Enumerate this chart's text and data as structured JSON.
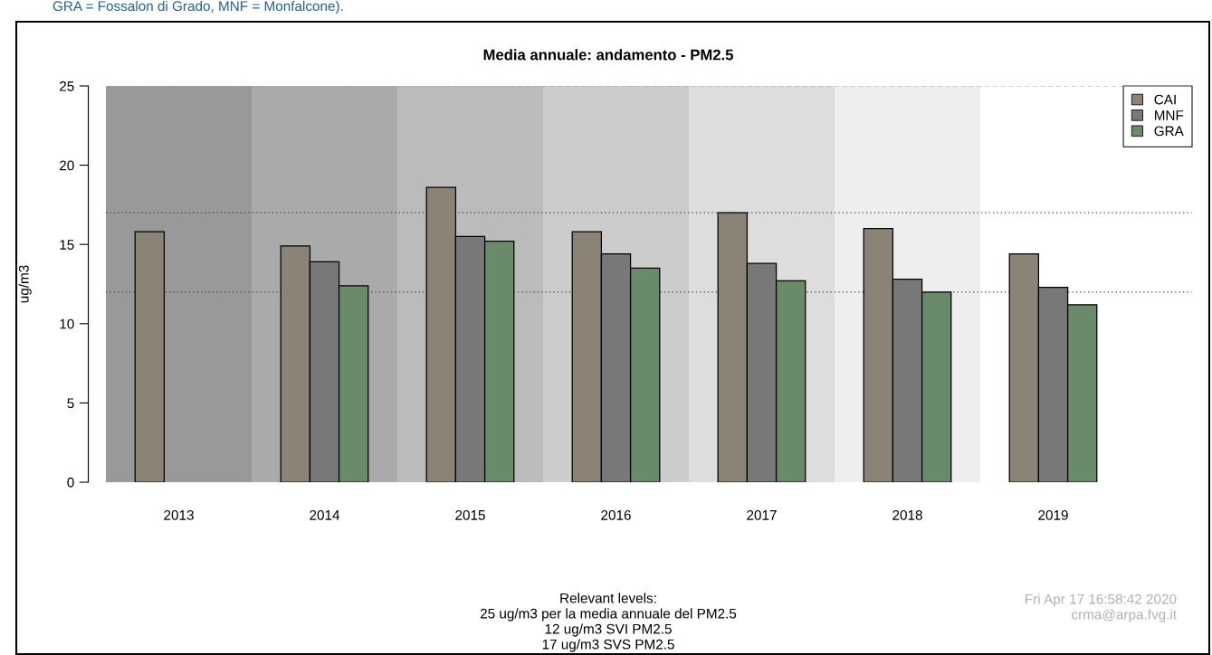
{
  "chart_data": {
    "type": "bar",
    "title": "Media annuale: andamento - PM2.5",
    "ylabel": "ug/m3",
    "categories": [
      "2013",
      "2014",
      "2015",
      "2016",
      "2017",
      "2018",
      "2019"
    ],
    "series": [
      {
        "name": "CAI",
        "color": "#8b8376",
        "values": [
          15.8,
          14.9,
          18.6,
          15.8,
          17.0,
          16.0,
          14.4
        ]
      },
      {
        "name": "MNF",
        "color": "#787878",
        "values": [
          null,
          13.9,
          15.5,
          14.4,
          13.8,
          12.8,
          12.3
        ]
      },
      {
        "name": "GRA",
        "color": "#698b69",
        "values": [
          null,
          12.4,
          15.2,
          13.5,
          12.7,
          12.0,
          11.2
        ]
      }
    ],
    "ylim": [
      0,
      25
    ],
    "yticks": [
      0,
      5,
      10,
      15,
      20,
      25
    ],
    "ref_lines": [
      {
        "axis": "y",
        "value": 25,
        "color": "#a0a0a0",
        "line_style": "dashed"
      },
      {
        "axis": "y",
        "value": 17,
        "color": "#404040",
        "line_style": "dotted"
      },
      {
        "axis": "y",
        "value": 12,
        "color": "#404040",
        "line_style": "dotted"
      }
    ],
    "bands": [
      {
        "axis": "x",
        "from": "2013",
        "to": "2013",
        "color": "#999999"
      },
      {
        "axis": "x",
        "from": "2014",
        "to": "2014",
        "color": "#aaaaaa"
      },
      {
        "axis": "x",
        "from": "2015",
        "to": "2015",
        "color": "#bbbbbb"
      },
      {
        "axis": "x",
        "from": "2016",
        "to": "2016",
        "color": "#cccccc"
      },
      {
        "axis": "x",
        "from": "2017",
        "to": "2017",
        "color": "#dddddd"
      },
      {
        "axis": "x",
        "from": "2018",
        "to": "2018",
        "color": "#eeeeee"
      }
    ],
    "legend": "top right",
    "grid": false,
    "annotations": [
      "GRA = Fossalon di Grado, MNF = Monfalcone).",
      "Relevant levels:\n25 ug/m3 per la media annuale del PM2.5\n12 ug/m3 SVI PM2.5\n17 ug/m3 SVS PM2.5",
      "Fri Apr 17 16:58:42 2020\ncrma@arpa.fvg.it"
    ]
  }
}
